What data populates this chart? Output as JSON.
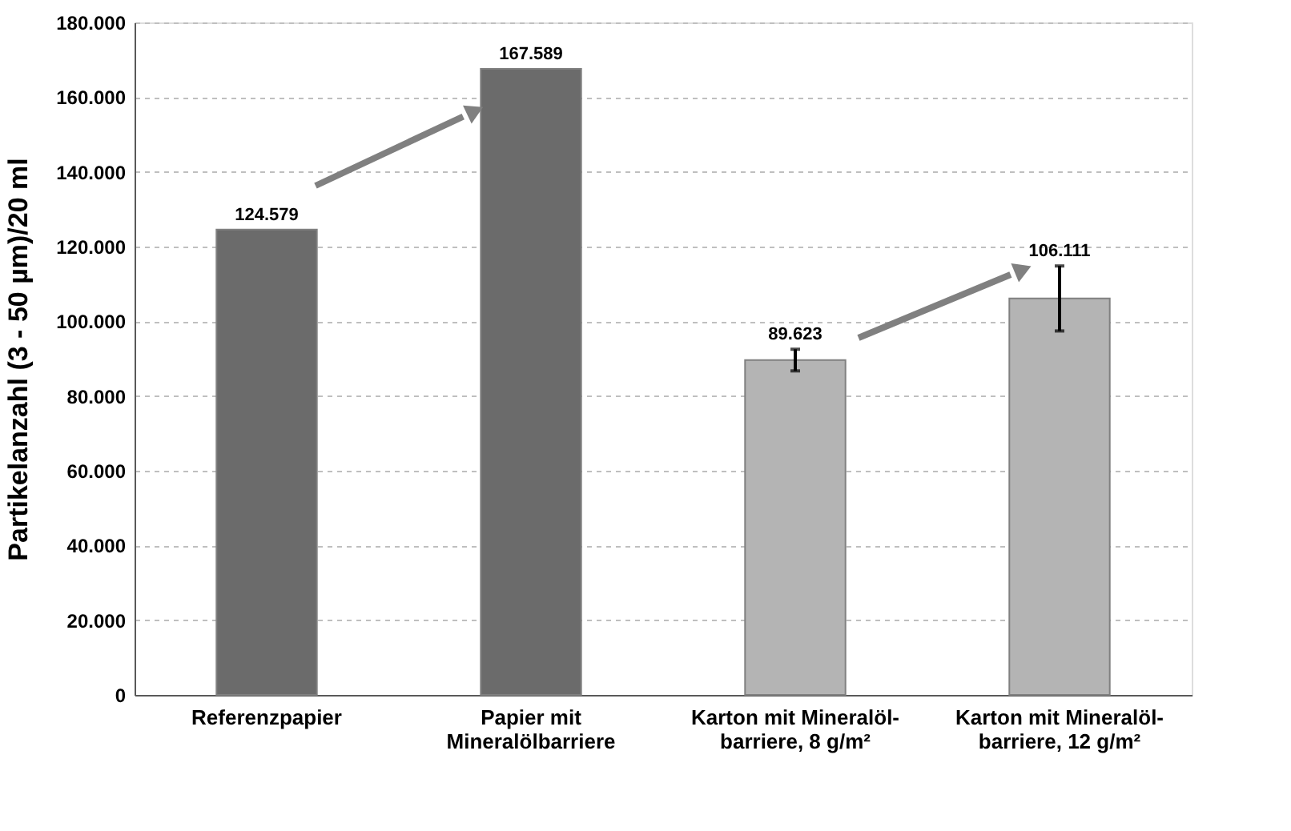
{
  "chart_data": {
    "type": "bar",
    "ylabel": "Partikelanzahl (3 - 50 µm)/20 ml",
    "categories": [
      "Referenzpapier",
      "Papier mit Mineralölbarriere",
      "Karton mit Mineralöl-barriere, 8 g/m²",
      "Karton mit Mineralöl-barriere, 12 g/m²"
    ],
    "values": [
      124579,
      167589,
      89623,
      106111
    ],
    "errors": [
      null,
      null,
      2900,
      8700
    ],
    "colors": [
      "#6b6b6b",
      "#6b6b6b",
      "#b4b4b4",
      "#b4b4b4"
    ],
    "value_labels": [
      "124.579",
      "167.589",
      "89.623",
      "106.111"
    ],
    "ylim": [
      0,
      180000
    ],
    "yticks": [
      0,
      {
        "value": 20000,
        "label": "20.000"
      },
      {
        "value": 40000,
        "label": "40.000"
      },
      {
        "value": 60000,
        "label": "60.000"
      },
      {
        "value": 80000,
        "label": "80.000"
      },
      {
        "value": 100000,
        "label": "100.000"
      },
      {
        "value": 120000,
        "label": "120.000"
      },
      {
        "value": 140000,
        "label": "140.000"
      },
      {
        "value": 160000,
        "label": "160.000"
      },
      {
        "value": 180000,
        "label": "180.000"
      }
    ],
    "grid": "y"
  }
}
